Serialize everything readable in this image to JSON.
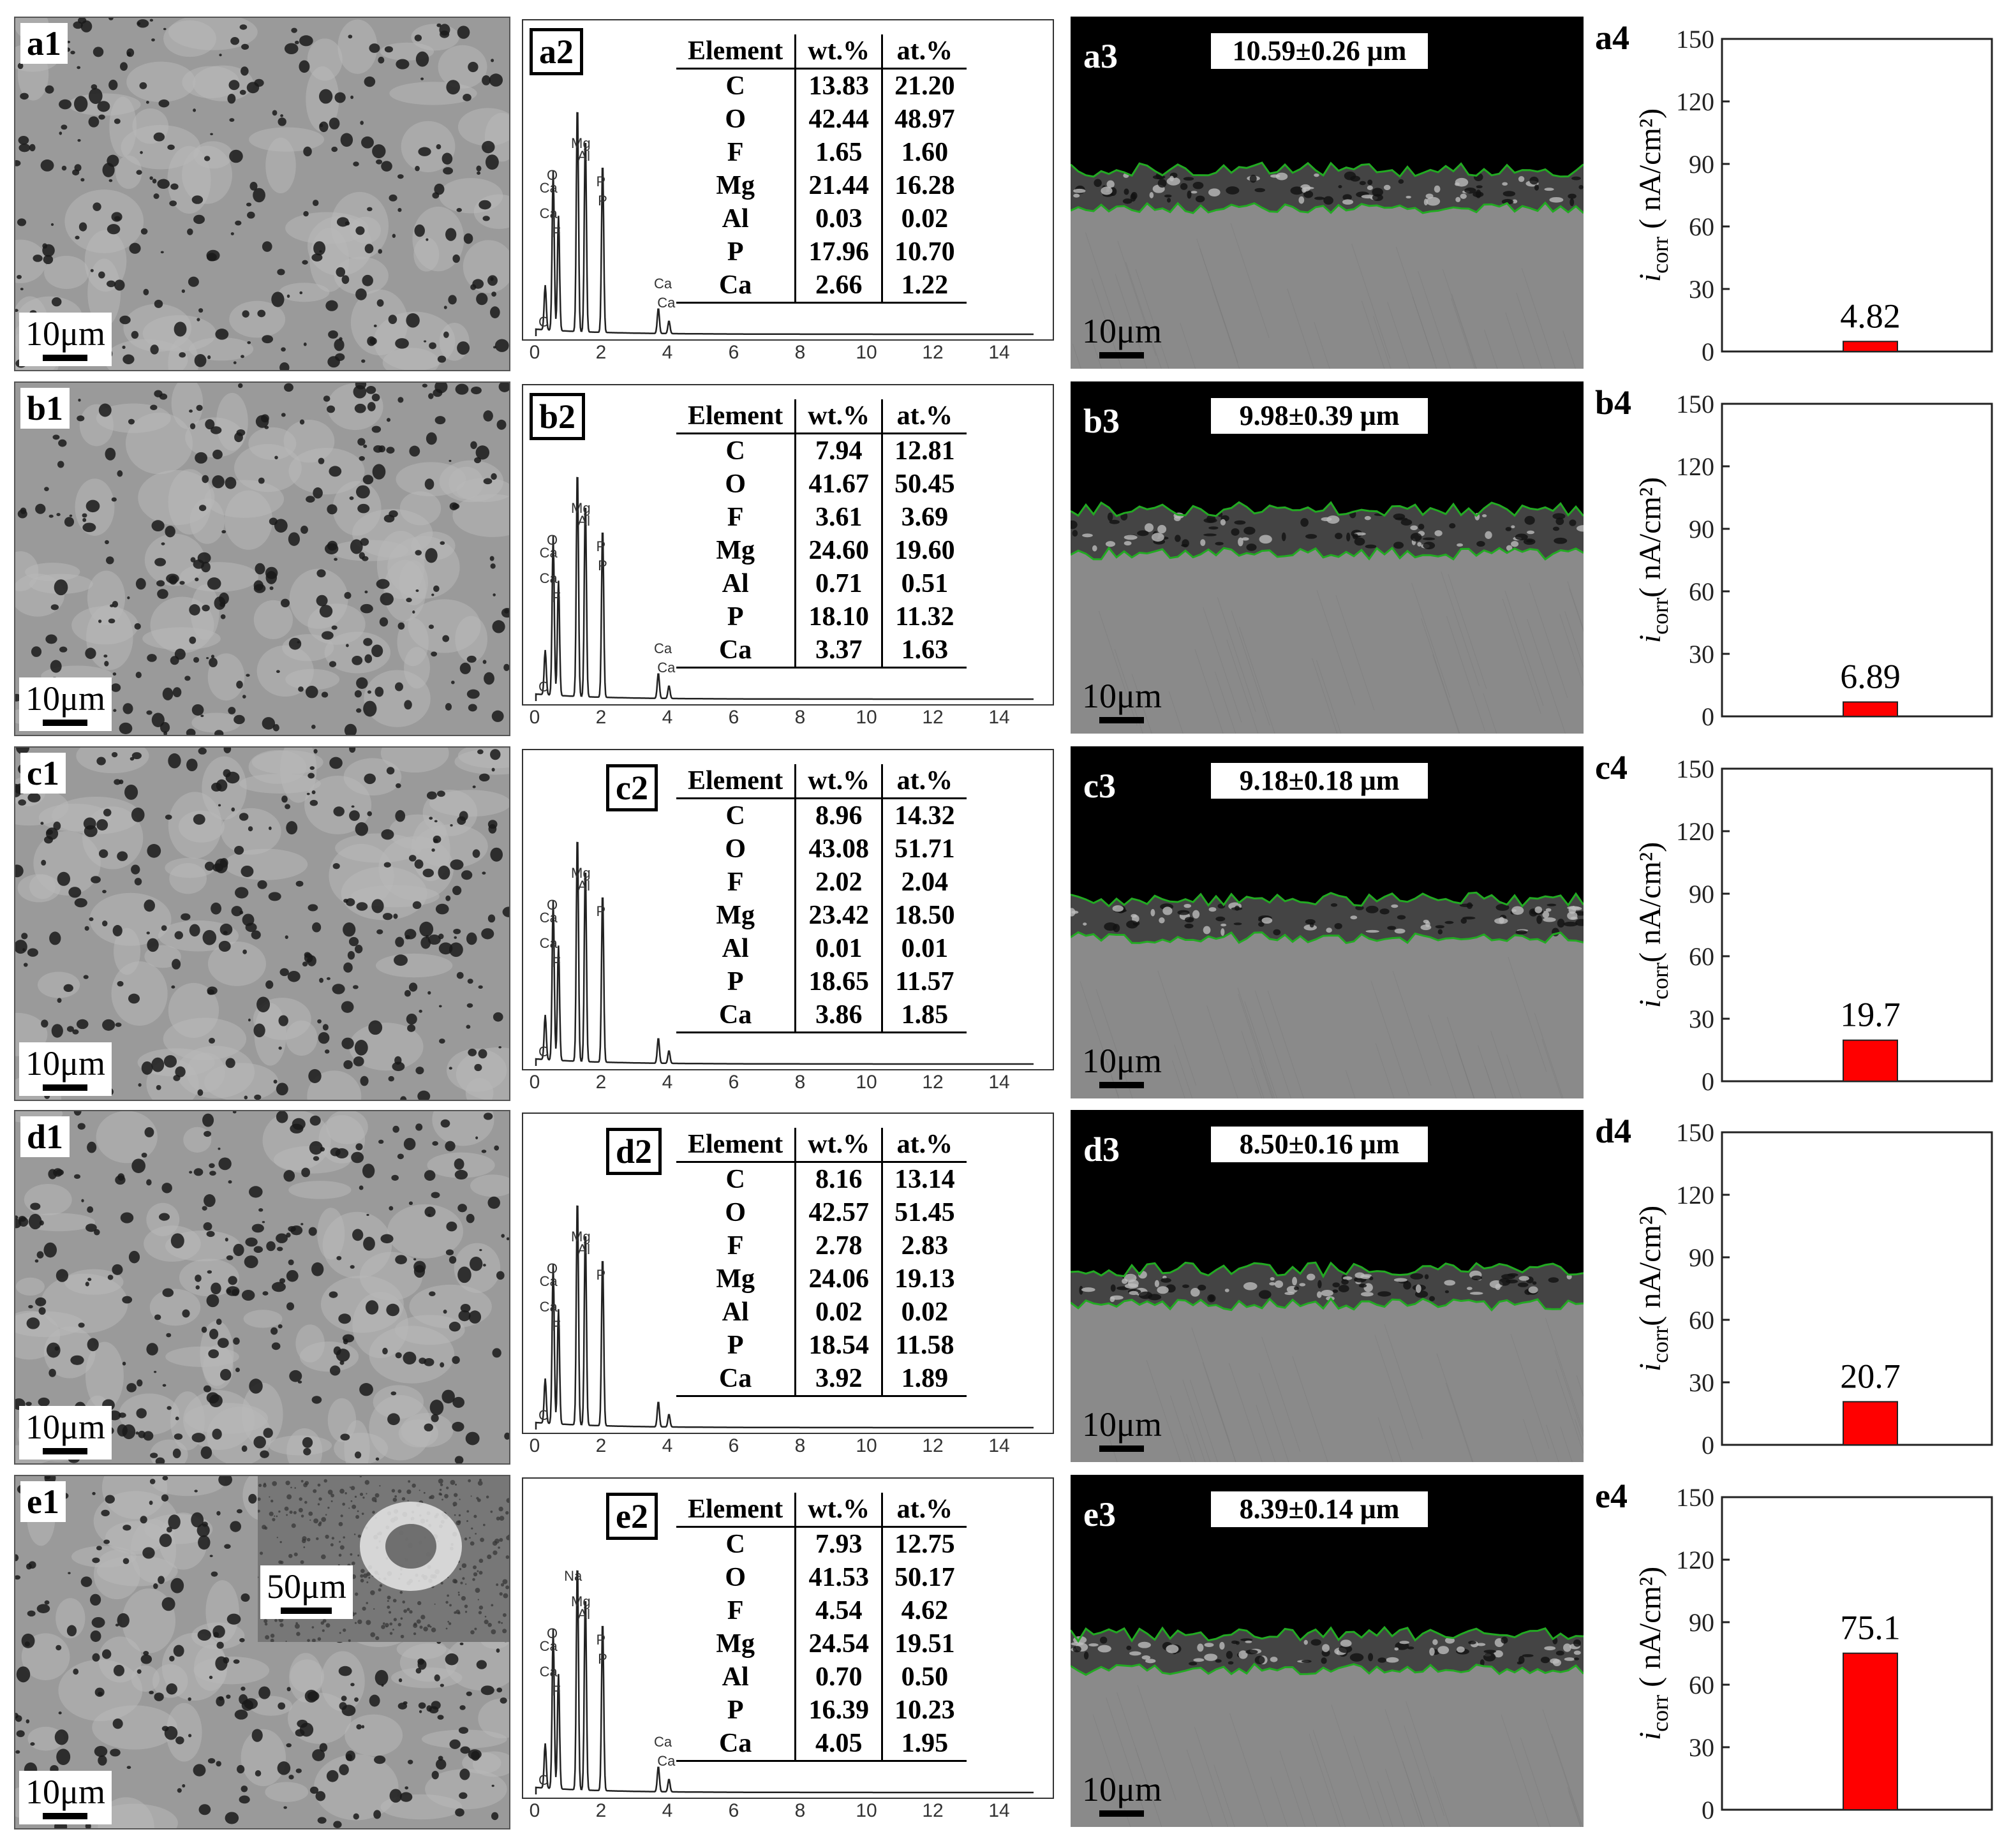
{
  "panels": [
    {
      "sem_label": "a1",
      "sem_scale": "10μm",
      "eds_label": "a2",
      "eds_peaks": [
        "Ca",
        "Ca",
        "O",
        "F",
        "Mg",
        "Al",
        "P",
        "P",
        "Ca",
        "Ca",
        "C"
      ],
      "table": {
        "headers": [
          "Element",
          "wt.%",
          "at.%"
        ],
        "rows": [
          [
            "C",
            "13.83",
            "21.20"
          ],
          [
            "O",
            "42.44",
            "48.97"
          ],
          [
            "F",
            "1.65",
            "1.60"
          ],
          [
            "Mg",
            "21.44",
            "16.28"
          ],
          [
            "Al",
            "0.03",
            "0.02"
          ],
          [
            "P",
            "17.96",
            "10.70"
          ],
          [
            "Ca",
            "2.66",
            "1.22"
          ]
        ]
      },
      "cross_label": "a3",
      "thickness": "10.59±0.26 μm",
      "cross_scale": "10μm",
      "bar_label": "a4"
    },
    {
      "sem_label": "b1",
      "sem_scale": "10μm",
      "eds_label": "b2",
      "eds_peaks": [
        "Ca",
        "Ca",
        "O",
        "F",
        "Mg",
        "Al",
        "P",
        "P",
        "Ca",
        "Ca",
        "C"
      ],
      "table": {
        "headers": [
          "Element",
          "wt.%",
          "at.%"
        ],
        "rows": [
          [
            "C",
            "7.94",
            "12.81"
          ],
          [
            "O",
            "41.67",
            "50.45"
          ],
          [
            "F",
            "3.61",
            "3.69"
          ],
          [
            "Mg",
            "24.60",
            "19.60"
          ],
          [
            "Al",
            "0.71",
            "0.51"
          ],
          [
            "P",
            "18.10",
            "11.32"
          ],
          [
            "Ca",
            "3.37",
            "1.63"
          ]
        ]
      },
      "cross_label": "b3",
      "thickness": "9.98±0.39 μm",
      "cross_scale": "10μm",
      "bar_label": "b4"
    },
    {
      "sem_label": "c1",
      "sem_scale": "10μm",
      "eds_label": "c2",
      "eds_peaks": [
        "Ca",
        "O",
        "F",
        "Mg",
        "Al",
        "P",
        "Ca",
        "C"
      ],
      "table": {
        "headers": [
          "Element",
          "wt.%",
          "at.%"
        ],
        "rows": [
          [
            "C",
            "8.96",
            "14.32"
          ],
          [
            "O",
            "43.08",
            "51.71"
          ],
          [
            "F",
            "2.02",
            "2.04"
          ],
          [
            "Mg",
            "23.42",
            "18.50"
          ],
          [
            "Al",
            "0.01",
            "0.01"
          ],
          [
            "P",
            "18.65",
            "11.57"
          ],
          [
            "Ca",
            "3.86",
            "1.85"
          ]
        ]
      },
      "cross_label": "c3",
      "thickness": "9.18±0.18 μm",
      "cross_scale": "10μm",
      "bar_label": "c4"
    },
    {
      "sem_label": "d1",
      "sem_scale": "10μm",
      "eds_label": "d2",
      "eds_peaks": [
        "Ca",
        "O",
        "F",
        "Mg",
        "Al",
        "P",
        "Ca",
        "C"
      ],
      "table": {
        "headers": [
          "Element",
          "wt.%",
          "at.%"
        ],
        "rows": [
          [
            "C",
            "8.16",
            "13.14"
          ],
          [
            "O",
            "42.57",
            "51.45"
          ],
          [
            "F",
            "2.78",
            "2.83"
          ],
          [
            "Mg",
            "24.06",
            "19.13"
          ],
          [
            "Al",
            "0.02",
            "0.02"
          ],
          [
            "P",
            "18.54",
            "11.58"
          ],
          [
            "Ca",
            "3.92",
            "1.89"
          ]
        ]
      },
      "cross_label": "d3",
      "thickness": "8.50±0.16 μm",
      "cross_scale": "10μm",
      "bar_label": "d4"
    },
    {
      "sem_label": "e1",
      "sem_scale": "10μm",
      "inset_scale": "50μm",
      "eds_label": "e2",
      "eds_peaks": [
        "Ca",
        "Ca",
        "O",
        "Na",
        "F",
        "Mg",
        "Al",
        "P",
        "P",
        "Ca",
        "Ca",
        "C"
      ],
      "table": {
        "headers": [
          "Element",
          "wt.%",
          "at.%"
        ],
        "rows": [
          [
            "C",
            "7.93",
            "12.75"
          ],
          [
            "O",
            "41.53",
            "50.17"
          ],
          [
            "F",
            "4.54",
            "4.62"
          ],
          [
            "Mg",
            "24.54",
            "19.51"
          ],
          [
            "Al",
            "0.70",
            "0.50"
          ],
          [
            "P",
            "16.39",
            "10.23"
          ],
          [
            "Ca",
            "4.05",
            "1.95"
          ]
        ]
      },
      "cross_label": "e3",
      "thickness": "8.39±0.14 μm",
      "cross_scale": "10μm",
      "bar_label": "e4"
    }
  ],
  "eds_xticks": [
    "0",
    "2",
    "4",
    "6",
    "8",
    "10",
    "12",
    "14"
  ],
  "chart_data": [
    {
      "type": "bar",
      "panel": "a4",
      "values": [
        4.82
      ],
      "value_labels": [
        "4.82"
      ],
      "ylim": [
        0,
        150
      ],
      "yticks": [
        0,
        30,
        60,
        90,
        120,
        150
      ],
      "ylabel": "i_corr ( nA/cm²)",
      "color": "#ff0000"
    },
    {
      "type": "bar",
      "panel": "b4",
      "values": [
        6.89
      ],
      "value_labels": [
        "6.89"
      ],
      "ylim": [
        0,
        150
      ],
      "yticks": [
        0,
        30,
        60,
        90,
        120,
        150
      ],
      "ylabel": "i_corr( nA/cm²)",
      "color": "#ff0000"
    },
    {
      "type": "bar",
      "panel": "c4",
      "values": [
        19.7
      ],
      "value_labels": [
        "19.7"
      ],
      "ylim": [
        0,
        150
      ],
      "yticks": [
        0,
        30,
        60,
        90,
        120,
        150
      ],
      "ylabel": "i_corr( nA/cm²)",
      "color": "#ff0000"
    },
    {
      "type": "bar",
      "panel": "d4",
      "values": [
        20.7
      ],
      "value_labels": [
        "20.7"
      ],
      "ylim": [
        0,
        150
      ],
      "yticks": [
        0,
        30,
        60,
        90,
        120,
        150
      ],
      "ylabel": "i_corr( nA/cm²)",
      "color": "#ff0000"
    },
    {
      "type": "bar",
      "panel": "e4",
      "values": [
        75.1
      ],
      "value_labels": [
        "75.1"
      ],
      "ylim": [
        0,
        150
      ],
      "yticks": [
        0,
        30,
        60,
        90,
        120,
        150
      ],
      "ylabel": "i_corr ( nA/cm²)",
      "color": "#ff0000"
    }
  ],
  "colors": {
    "bar": "#ff0000",
    "interface_line": "#22aa22",
    "coating": "#444444",
    "substrate": "#8a8a8a"
  }
}
